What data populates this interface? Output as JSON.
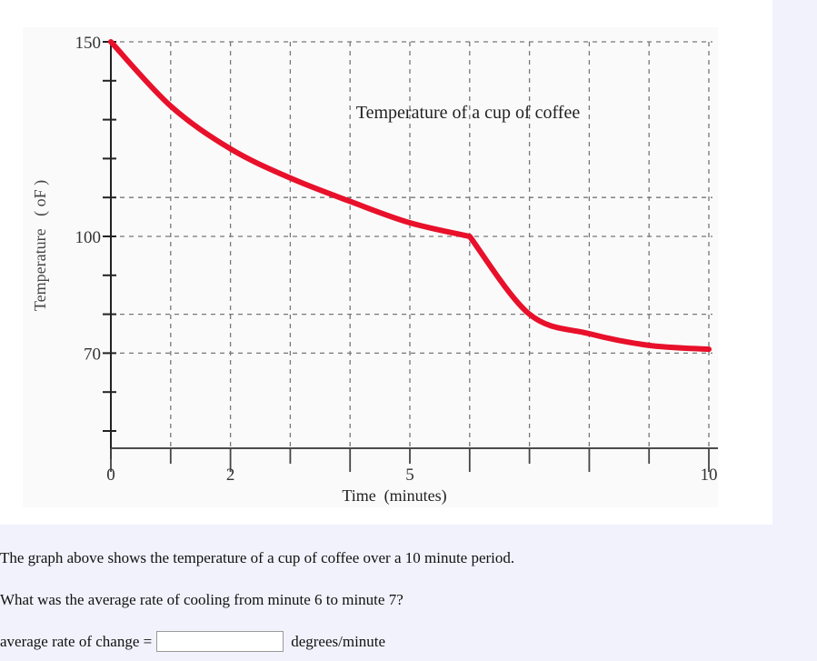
{
  "chart_data": {
    "type": "line",
    "title": "Temperature of a cup of coffee",
    "xlabel": "Time  (minutes)",
    "ylabel": "Temperature   ( oF )",
    "x": [
      0,
      1,
      2,
      3,
      4,
      5,
      6,
      7,
      8,
      9,
      10
    ],
    "series": [
      {
        "name": "Temperature",
        "color": "#e8102a",
        "values": [
          150,
          133.5,
          122.5,
          115,
          109,
          103.5,
          100,
          80,
          75,
          72,
          71
        ]
      }
    ],
    "xlim": [
      0,
      10
    ],
    "ylim": [
      45,
      150
    ],
    "x_tick_labels": [
      {
        "value": 0,
        "label": "0"
      },
      {
        "value": 2,
        "label": "2"
      },
      {
        "value": 5,
        "label": "5"
      },
      {
        "value": 10,
        "label": "10"
      }
    ],
    "y_tick_labels": [
      {
        "value": 150,
        "label": "150"
      },
      {
        "value": 100,
        "label": "100"
      },
      {
        "value": 70,
        "label": "70"
      }
    ],
    "y_minor_ticks": [
      140,
      130,
      120,
      110,
      90,
      80,
      60,
      50
    ],
    "x_minor_ticks": [
      1,
      3,
      4,
      6,
      7,
      8,
      9
    ],
    "grid": true,
    "grid_style": "dashed",
    "h_gridlines": [
      150,
      110,
      100,
      80,
      70
    ],
    "v_gridlines": [
      1,
      2,
      3,
      4,
      5,
      6,
      7,
      8,
      9,
      10
    ],
    "legend": "none"
  },
  "question": {
    "line1": "The graph above shows the temperature of a cup of coffee over a 10 minute period.",
    "line2": "What was the average rate of cooling from minute 6 to minute 7?",
    "answer_label": "average rate of change =",
    "answer_value": "",
    "answer_units": "degrees/minute"
  }
}
